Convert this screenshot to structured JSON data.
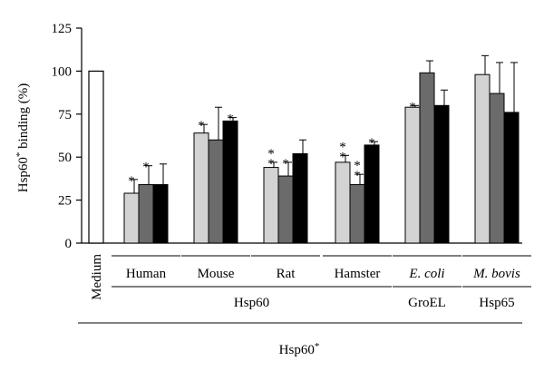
{
  "chart_data": {
    "type": "bar",
    "ylabel_main": "Hsp60",
    "ylabel_sup": "*",
    "ylabel_rest": " binding (%)",
    "ylim": [
      0,
      125
    ],
    "yticks": [
      0,
      25,
      50,
      75,
      100,
      125
    ],
    "grid": false,
    "colors": {
      "medium": "#ffffff",
      "light": "#d3d3d3",
      "dark": "#6b6b6b",
      "black": "#000000"
    },
    "medium": {
      "label": "Medium",
      "value": 100
    },
    "groups": [
      {
        "label": "Human",
        "italic": false,
        "values": [
          29,
          34,
          34
        ],
        "errors": [
          8,
          11,
          12
        ],
        "sig": [
          "*",
          "*",
          ""
        ]
      },
      {
        "label": "Mouse",
        "italic": false,
        "values": [
          64,
          60,
          71
        ],
        "errors": [
          5,
          19,
          2
        ],
        "sig": [
          "*",
          "",
          "*"
        ]
      },
      {
        "label": "Rat",
        "italic": false,
        "values": [
          44,
          39,
          52
        ],
        "errors": [
          3,
          8,
          8
        ],
        "sig": [
          "**",
          "*",
          ""
        ]
      },
      {
        "label": "Hamster",
        "italic": false,
        "values": [
          47,
          34,
          57
        ],
        "errors": [
          4,
          6,
          2
        ],
        "sig": [
          "**",
          "**",
          "*"
        ]
      },
      {
        "label": "E. coli",
        "italic": true,
        "values": [
          79,
          99,
          80
        ],
        "errors": [
          1,
          7,
          9
        ],
        "sig": [
          "*",
          "",
          ""
        ]
      },
      {
        "label": "M. bovis",
        "italic": true,
        "values": [
          98,
          87,
          76
        ],
        "errors": [
          11,
          18,
          29
        ],
        "sig": [
          "",
          "",
          ""
        ]
      }
    ],
    "family_labels": [
      "Hsp60",
      "GroEL",
      "Hsp65"
    ],
    "xlabel_main": "Hsp60",
    "xlabel_sup": "*"
  }
}
